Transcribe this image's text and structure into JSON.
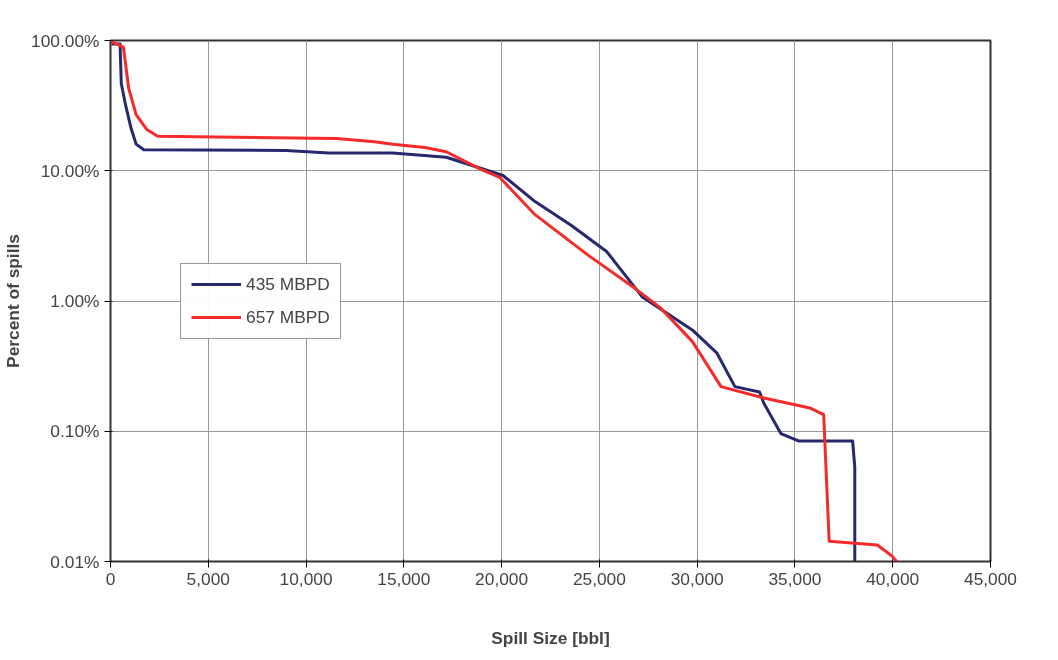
{
  "chart_data": {
    "type": "line",
    "xlabel": "Spill Size [bbl]",
    "ylabel": "Percent of spills",
    "log": "y",
    "grid": true,
    "legend": "left",
    "marker": "none",
    "line_style": "solid",
    "xlim": [
      0,
      45000
    ],
    "ylim": [
      0.01,
      100
    ],
    "xticks": [
      0,
      {
        "value": 5000,
        "label": "5,000"
      },
      {
        "value": 10000,
        "label": "10,000"
      },
      {
        "value": 15000,
        "label": "15,000"
      },
      {
        "value": 20000,
        "label": "20,000"
      },
      {
        "value": 25000,
        "label": "25,000"
      },
      {
        "value": 30000,
        "label": "30,000"
      },
      {
        "value": 35000,
        "label": "35,000"
      },
      {
        "value": 40000,
        "label": "40,000"
      },
      {
        "value": 45000,
        "label": "45,000"
      }
    ],
    "yticks": [
      {
        "value": 0.01,
        "label": "0.01%"
      },
      {
        "value": 0.1,
        "label": "0.10%"
      },
      {
        "value": 1,
        "label": "1.00%"
      },
      {
        "value": 10,
        "label": "10.00%"
      },
      {
        "value": 100,
        "label": "100.00%"
      }
    ],
    "series": [
      {
        "name": "435 MBPD",
        "color": "#27286e",
        "x": [
          50,
          490,
          550,
          770,
          1040,
          1310,
          1700,
          8970,
          11150,
          14430,
          17170,
          18970,
          20070,
          21710,
          23570,
          25370,
          27180,
          29750,
          31000,
          31930,
          33190,
          33410,
          34280,
          35210,
          37950,
          38060,
          38060
        ],
        "values": [
          94,
          94,
          47,
          32,
          21.5,
          16,
          14.5,
          14.3,
          13.7,
          13.7,
          12.7,
          10.4,
          9.2,
          5.8,
          3.8,
          2.4,
          1.08,
          0.6,
          0.4,
          0.22,
          0.2,
          0.164,
          0.096,
          0.084,
          0.084,
          0.053,
          0.01
        ]
      },
      {
        "name": "657 MBPD",
        "color": "#f52a2a",
        "x": [
          50,
          660,
          930,
          1310,
          1860,
          2410,
          11540,
          13510,
          14430,
          16080,
          17170,
          18970,
          19900,
          21710,
          24440,
          26850,
          28110,
          29750,
          31220,
          33410,
          35760,
          36470,
          36750,
          39210,
          39970,
          40200
        ],
        "values": [
          98,
          89,
          43,
          27,
          20.7,
          18.4,
          17.7,
          16.7,
          16,
          15.1,
          14,
          10.2,
          8.9,
          4.6,
          2.24,
          1.24,
          0.89,
          0.49,
          0.22,
          0.18,
          0.151,
          0.134,
          0.0143,
          0.0134,
          0.011,
          0.01
        ]
      }
    ]
  }
}
